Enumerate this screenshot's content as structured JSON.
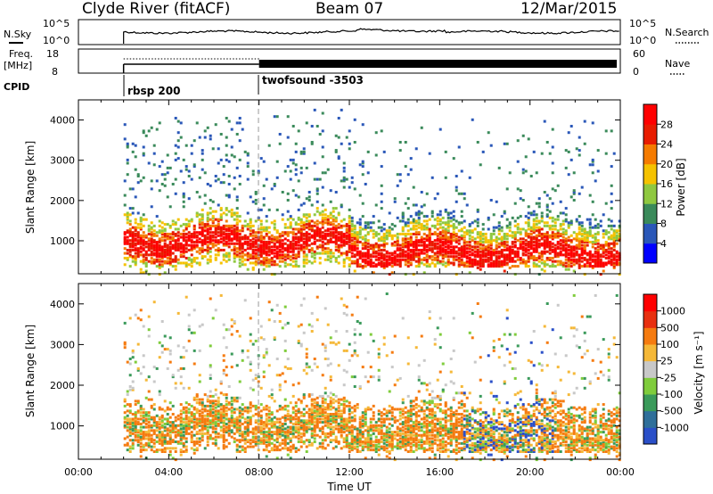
{
  "header": {
    "station": "Clyde River (fitACF)",
    "beam": "Beam 07",
    "date": "12/Mar/2015"
  },
  "top_panels": {
    "nsky_label": "N.Sky",
    "nsky_ticks": [
      "10^5",
      "10^0"
    ],
    "nsearch_label": "N.Search",
    "nsearch_ticks": [
      "10^5",
      "10^0"
    ],
    "freq_label": "Freq.",
    "freq_unit": "[MHz]",
    "freq_ticks": [
      "18",
      "8"
    ],
    "nave_label": "Nave",
    "nave_ticks": [
      "60",
      "0"
    ],
    "cpid_label": "CPID",
    "cpid_segments": [
      {
        "name": "rbsp 200",
        "start_hour": 2.0
      },
      {
        "name": "twofsound -3503",
        "start_hour": 8.0
      }
    ]
  },
  "chart_data": [
    {
      "type": "heatmap",
      "quantity": "Power",
      "colorbar_label": "Power [dB]",
      "colorbar_ticks": [
        "28",
        "24",
        "20",
        "16",
        "12",
        "8",
        "4"
      ],
      "colorbar_range": [
        0,
        32
      ],
      "colors": [
        "#0000ff",
        "#2a57b8",
        "#3a8a5a",
        "#8fc840",
        "#f5c200",
        "#f57b00",
        "#e81c00",
        "#ff0000"
      ],
      "ylabel": "Slant Range [km]",
      "yticks": [
        1000,
        2000,
        3000,
        4000
      ],
      "ylim": [
        180,
        4500
      ],
      "xlabel": "Time UT",
      "xlim": [
        0,
        24
      ],
      "data_start_hour": 2.0
    },
    {
      "type": "heatmap",
      "quantity": "Velocity",
      "colorbar_label": "Velocity [m s⁻¹]",
      "colorbar_ticks": [
        "1000",
        "500",
        "100",
        "25",
        "-25",
        "-100",
        "-500",
        "-1000"
      ],
      "colors": [
        "#2a4fc8",
        "#2f6f9a",
        "#3a9a5a",
        "#7fcc3c",
        "#c8c8c8",
        "#f5b838",
        "#f57b10",
        "#e83010",
        "#ff0000"
      ],
      "ylabel": "Slant Range [km]",
      "yticks": [
        1000,
        2000,
        3000,
        4000
      ],
      "ylim": [
        180,
        4500
      ],
      "xlabel": "Time UT",
      "xticks": [
        "00:00",
        "04:00",
        "08:00",
        "12:00",
        "16:00",
        "20:00",
        "00:00"
      ],
      "xlim": [
        0,
        24
      ],
      "data_start_hour": 2.0
    }
  ]
}
